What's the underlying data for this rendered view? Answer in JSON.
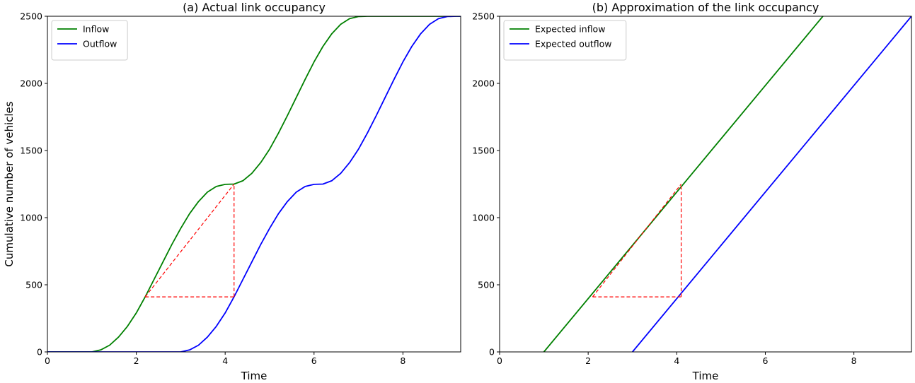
{
  "chart_data": [
    {
      "type": "line",
      "title": "(a)  Actual link occupancy",
      "xlabel": "Time",
      "ylabel": "Cumulative number of vehicles",
      "xlim": [
        0,
        9.3
      ],
      "ylim": [
        0,
        2500
      ],
      "xticks": [
        0,
        2,
        4,
        6,
        8
      ],
      "yticks": [
        0,
        500,
        1000,
        1500,
        2000,
        2500
      ],
      "show_yticklabels": true,
      "grid": false,
      "legend": "top-left",
      "series": [
        {
          "name": "Inflow",
          "color": "#008000",
          "x": [
            0,
            0.5,
            1.0,
            1.2,
            1.4,
            1.6,
            1.8,
            2.0,
            2.2,
            2.4,
            2.6,
            2.8,
            3.0,
            3.2,
            3.4,
            3.6,
            3.8,
            4.0,
            4.2,
            4.4,
            4.6,
            4.8,
            5.0,
            5.2,
            5.4,
            5.6,
            5.8,
            6.0,
            6.2,
            6.4,
            6.6,
            6.8,
            7.0,
            7.2,
            7.4,
            7.6,
            8.0,
            9.3
          ],
          "y": [
            0,
            0,
            0,
            15,
            50,
            110,
            190,
            290,
            410,
            540,
            670,
            800,
            920,
            1030,
            1120,
            1190,
            1232,
            1248,
            1250,
            1275,
            1330,
            1410,
            1510,
            1630,
            1760,
            1895,
            2030,
            2160,
            2275,
            2370,
            2440,
            2482,
            2498,
            2500,
            2500,
            2500,
            2500,
            2500
          ]
        },
        {
          "name": "Outflow",
          "color": "#0000ff",
          "x": [
            0,
            1.0,
            2.0,
            3.0,
            3.2,
            3.4,
            3.6,
            3.8,
            4.0,
            4.2,
            4.4,
            4.6,
            4.8,
            5.0,
            5.2,
            5.4,
            5.6,
            5.8,
            6.0,
            6.2,
            6.4,
            6.6,
            6.8,
            7.0,
            7.2,
            7.4,
            7.6,
            7.8,
            8.0,
            8.2,
            8.4,
            8.6,
            8.8,
            9.0,
            9.2,
            9.3
          ],
          "y": [
            0,
            0,
            0,
            0,
            15,
            50,
            110,
            190,
            290,
            410,
            540,
            670,
            800,
            920,
            1030,
            1120,
            1190,
            1232,
            1248,
            1250,
            1275,
            1330,
            1410,
            1510,
            1630,
            1760,
            1895,
            2030,
            2160,
            2275,
            2370,
            2440,
            2482,
            2498,
            2500,
            2500
          ]
        }
      ],
      "annotations": {
        "color": "#ff0000",
        "dashed_lines": [
          {
            "x": [
              2.2,
              4.2
            ],
            "y": [
              410,
              1250
            ]
          },
          {
            "x": [
              2.2,
              4.2
            ],
            "y": [
              410,
              410
            ]
          },
          {
            "x": [
              4.2,
              4.2
            ],
            "y": [
              410,
              1250
            ]
          }
        ]
      }
    },
    {
      "type": "line",
      "title": "(b)  Approximation of the link occupancy",
      "xlabel": "Time",
      "ylabel": "",
      "xlim": [
        0,
        9.3
      ],
      "ylim": [
        0,
        2500
      ],
      "xticks": [
        0,
        2,
        4,
        6,
        8
      ],
      "yticks": [
        0,
        500,
        1000,
        1500,
        2000,
        2500
      ],
      "show_yticklabels": true,
      "grid": false,
      "legend": "top-left",
      "series": [
        {
          "name": "Expected inflow",
          "color": "#008000",
          "x": [
            1.0,
            7.3
          ],
          "y": [
            0,
            2500
          ]
        },
        {
          "name": "Expected outflow",
          "color": "#0000ff",
          "x": [
            3.0,
            9.3
          ],
          "y": [
            0,
            2500
          ]
        }
      ],
      "annotations": {
        "color": "#ff0000",
        "dashed_lines": [
          {
            "x": [
              2.1,
              4.1
            ],
            "y": [
              410,
              1250
            ]
          },
          {
            "x": [
              2.1,
              4.1
            ],
            "y": [
              410,
              410
            ]
          },
          {
            "x": [
              4.1,
              4.1
            ],
            "y": [
              410,
              1250
            ]
          }
        ]
      }
    }
  ]
}
